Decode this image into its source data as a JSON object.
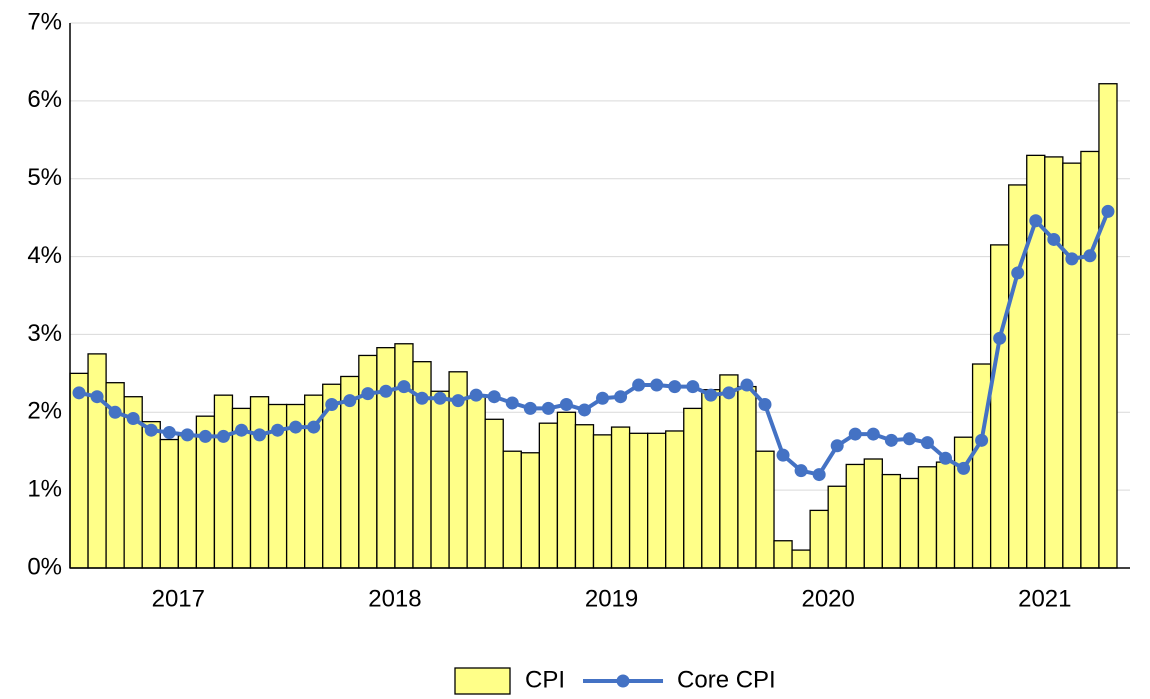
{
  "chart_data": {
    "type": "bar",
    "categories": [
      null,
      null,
      null,
      null,
      null,
      null,
      "2017",
      null,
      null,
      null,
      null,
      null,
      null,
      null,
      null,
      null,
      null,
      null,
      "2018",
      null,
      null,
      null,
      null,
      null,
      null,
      null,
      null,
      null,
      null,
      null,
      "2019",
      null,
      null,
      null,
      null,
      null,
      null,
      null,
      null,
      null,
      null,
      null,
      "2020",
      null,
      null,
      null,
      null,
      null,
      null,
      null,
      null,
      null,
      null,
      null,
      "2021",
      null,
      null,
      null
    ],
    "series": [
      {
        "name": "CPI",
        "type": "bar",
        "color": "#ffff88",
        "values": [
          2.5,
          2.75,
          2.38,
          2.2,
          1.88,
          1.65,
          1.7,
          1.95,
          2.22,
          2.05,
          2.2,
          2.1,
          2.1,
          2.22,
          2.36,
          2.46,
          2.73,
          2.83,
          2.88,
          2.65,
          2.27,
          2.52,
          2.2,
          1.91,
          1.5,
          1.48,
          1.86,
          2.0,
          1.84,
          1.71,
          1.81,
          1.73,
          1.73,
          1.76,
          2.05,
          2.29,
          2.48,
          2.33,
          1.5,
          0.35,
          0.23,
          0.74,
          1.05,
          1.33,
          1.4,
          1.2,
          1.15,
          1.3,
          1.36,
          1.68,
          2.62,
          4.15,
          4.92,
          5.3,
          5.28,
          5.2,
          5.35,
          6.22
        ]
      },
      {
        "name": "Core CPI",
        "type": "line",
        "color": "#4472c4",
        "values": [
          2.25,
          2.2,
          2.0,
          1.92,
          1.77,
          1.74,
          1.71,
          1.69,
          1.69,
          1.77,
          1.71,
          1.77,
          1.81,
          1.81,
          2.1,
          2.15,
          2.24,
          2.27,
          2.33,
          2.18,
          2.18,
          2.15,
          2.22,
          2.2,
          2.12,
          2.05,
          2.05,
          2.1,
          2.03,
          2.18,
          2.2,
          2.35,
          2.35,
          2.33,
          2.33,
          2.22,
          2.25,
          2.35,
          2.1,
          1.45,
          1.25,
          1.2,
          1.57,
          1.72,
          1.72,
          1.64,
          1.66,
          1.61,
          1.41,
          1.28,
          1.64,
          2.95,
          3.79,
          4.46,
          4.22,
          3.97,
          4.01,
          4.58
        ]
      }
    ],
    "ylim": [
      0,
      7
    ],
    "yticks": [
      {
        "value": 0,
        "label": "0%"
      },
      {
        "value": 1,
        "label": "1%"
      },
      {
        "value": 2,
        "label": "2%"
      },
      {
        "value": 3,
        "label": "3%"
      },
      {
        "value": 4,
        "label": "4%"
      },
      {
        "value": 5,
        "label": "5%"
      },
      {
        "value": 6,
        "label": "6%"
      },
      {
        "value": 7,
        "label": "7%"
      }
    ],
    "grid": true,
    "legend": "bottom"
  }
}
